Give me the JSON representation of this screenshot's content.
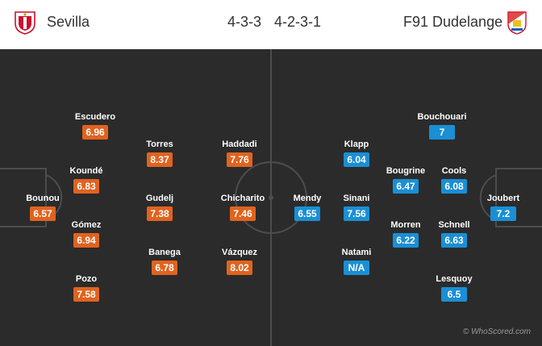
{
  "header": {
    "home_team": "Sevilla",
    "away_team": "F91 Dudelange",
    "home_formation": "4-3-3",
    "away_formation": "4-2-3-1",
    "home_color": "#e0631f",
    "away_color": "#1a8fd5"
  },
  "home_players": [
    {
      "name": "Bounou",
      "rating": "6.57"
    },
    {
      "name": "Escudero",
      "rating": "6.96"
    },
    {
      "name": "Koundé",
      "rating": "6.83"
    },
    {
      "name": "Gómez",
      "rating": "6.94"
    },
    {
      "name": "Pozo",
      "rating": "7.58"
    },
    {
      "name": "Torres",
      "rating": "8.37"
    },
    {
      "name": "Gudelj",
      "rating": "7.38"
    },
    {
      "name": "Banega",
      "rating": "6.78"
    },
    {
      "name": "Haddadi",
      "rating": "7.76"
    },
    {
      "name": "Chicharito",
      "rating": "7.46"
    },
    {
      "name": "Vázquez",
      "rating": "8.02"
    }
  ],
  "away_players": [
    {
      "name": "Mendy",
      "rating": "6.55"
    },
    {
      "name": "Klapp",
      "rating": "6.04"
    },
    {
      "name": "Sinani",
      "rating": "7.56"
    },
    {
      "name": "Natami",
      "rating": "N/A"
    },
    {
      "name": "Bougrine",
      "rating": "6.47"
    },
    {
      "name": "Morren",
      "rating": "6.22"
    },
    {
      "name": "Bouchouari",
      "rating": "7"
    },
    {
      "name": "Cools",
      "rating": "6.08"
    },
    {
      "name": "Schnell",
      "rating": "6.63"
    },
    {
      "name": "Lesquoy",
      "rating": "6.5"
    },
    {
      "name": "Joubert",
      "rating": "7.2"
    }
  ],
  "watermark": "© WhoScored.com"
}
